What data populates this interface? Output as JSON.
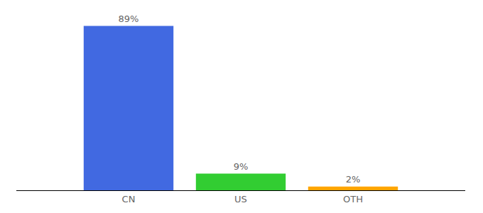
{
  "chart_data": {
    "type": "bar",
    "categories": [
      "CN",
      "US",
      "OTH"
    ],
    "values": [
      89,
      9,
      2
    ],
    "value_labels": [
      "89%",
      "9%",
      "2%"
    ],
    "colors": [
      "#4169e1",
      "#32cd32",
      "#ffa500"
    ],
    "ylim": [
      0,
      100
    ],
    "data_labels": true,
    "tick_labels": "x",
    "grid": false
  }
}
